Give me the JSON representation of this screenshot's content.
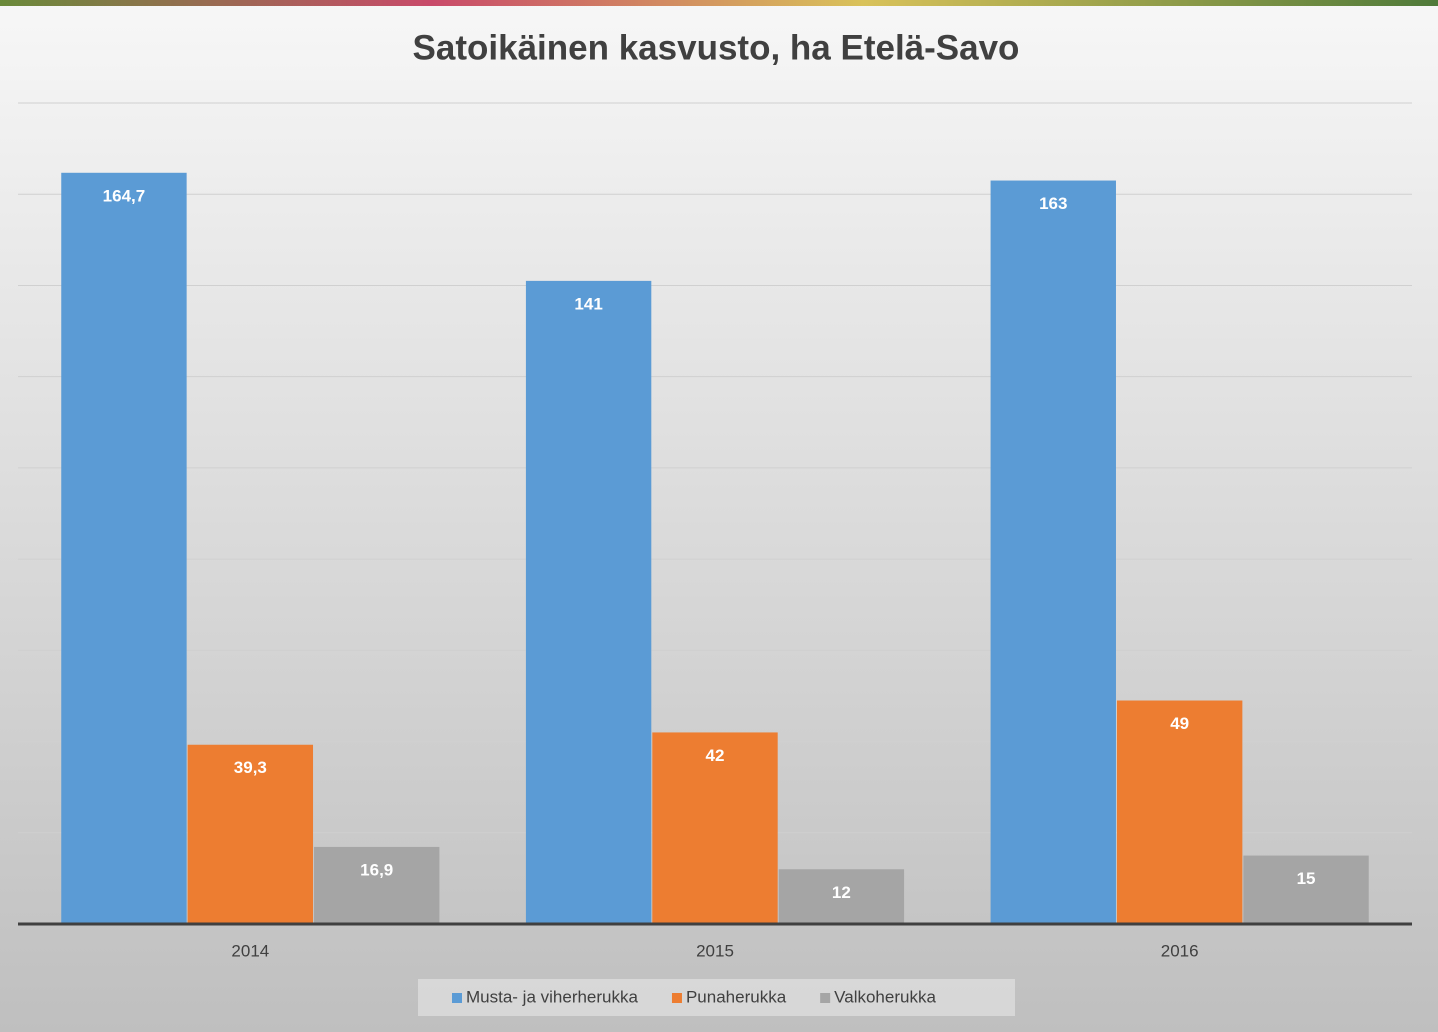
{
  "chart_data": {
    "type": "bar",
    "title": "Satoikäinen kasvusto, ha Etelä-Savo",
    "categories": [
      "2014",
      "2015",
      "2016"
    ],
    "series": [
      {
        "name": "Musta- ja viherherukka",
        "color": "#5b9bd5",
        "values": [
          164.7,
          141,
          163
        ],
        "value_labels": [
          "164,7",
          "141",
          "163"
        ]
      },
      {
        "name": "Punaherukka",
        "color": "#ed7d31",
        "values": [
          39.3,
          42,
          49
        ],
        "value_labels": [
          "39,3",
          "42",
          "49"
        ]
      },
      {
        "name": "Valkoherukka",
        "color": "#a5a5a5",
        "values": [
          16.9,
          12,
          15
        ],
        "value_labels": [
          "16,9",
          "12",
          "15"
        ]
      }
    ],
    "ylim": [
      0,
      180
    ],
    "yticks": [
      0,
      20,
      40,
      60,
      80,
      100,
      120,
      140,
      160,
      180
    ],
    "grid": true,
    "legend": "bottom"
  }
}
